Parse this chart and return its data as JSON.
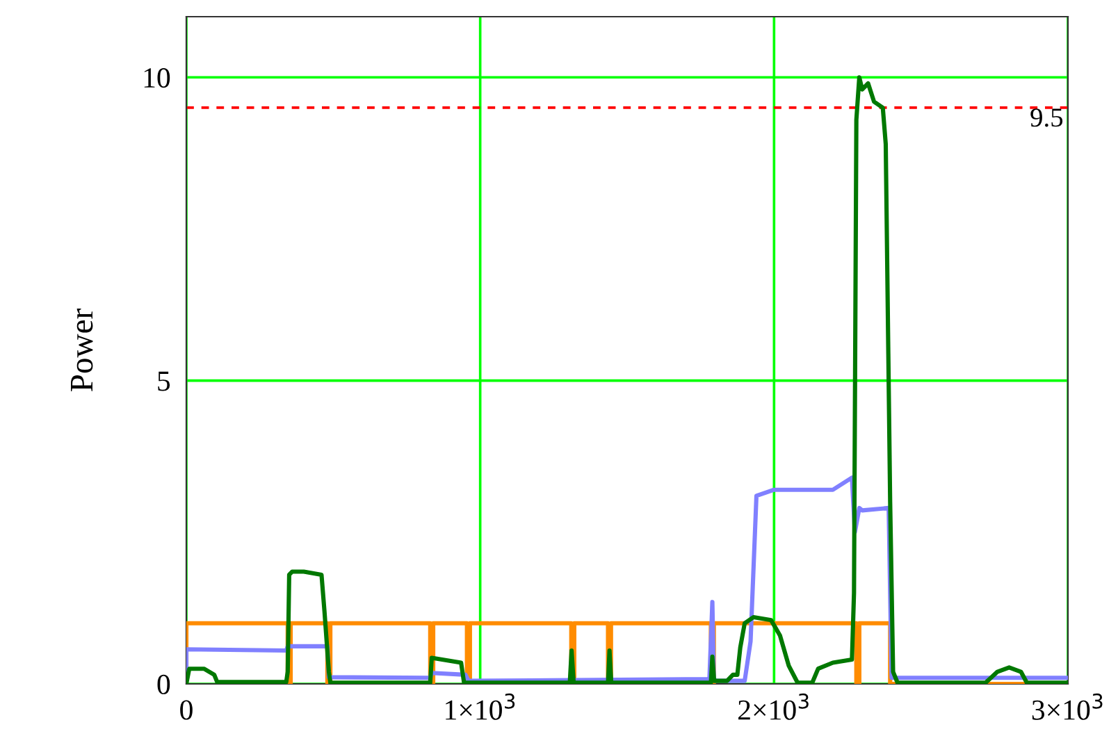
{
  "chart_data": {
    "type": "line",
    "ylabel": "Power",
    "xlim": [
      0,
      3000
    ],
    "ylim": [
      0,
      11
    ],
    "xticks": [
      0,
      {
        "value": 1000,
        "label": "1×10$^{3}$"
      },
      {
        "value": 2000,
        "label": "2×10$^{3}$"
      },
      {
        "value": 3000,
        "label": "3×10$^{3}$"
      }
    ],
    "yticks": [
      0,
      5,
      10
    ],
    "grid": true,
    "legend": false,
    "line_style": "solid",
    "marker": "none",
    "ref_lines": [
      {
        "axis": "y",
        "value": 9.5,
        "label": "9.5",
        "color": "#ff0000",
        "line_style": "dashed"
      }
    ],
    "series": [
      {
        "color": "#ff8c00",
        "x": [
          0,
          0,
          345,
          345,
          355,
          355,
          480,
          480,
          490,
          490,
          830,
          830,
          840,
          840,
          955,
          955,
          965,
          965,
          1310,
          1310,
          1320,
          1320,
          1435,
          1435,
          1445,
          1445,
          1785,
          1785,
          1795,
          1795,
          2280,
          2280,
          2290,
          2290,
          2395,
          2395,
          3000
        ],
        "values": [
          0,
          1,
          1,
          0,
          0,
          1,
          1,
          0,
          0,
          1,
          1,
          0,
          0,
          1,
          1,
          0,
          0,
          1,
          1,
          0,
          0,
          1,
          1,
          0,
          0,
          1,
          1,
          0,
          0,
          1,
          1,
          0,
          0,
          1,
          1,
          0,
          0
        ]
      },
      {
        "color": "#8080ff",
        "x": [
          0,
          0,
          340,
          345,
          480,
          485,
          830,
          835,
          950,
          960,
          1780,
          1790,
          1795,
          1800,
          1900,
          1920,
          1940,
          2000,
          2100,
          2200,
          2265,
          2275,
          2290,
          2300,
          2390,
          2400,
          3000
        ],
        "values": [
          0,
          0.57,
          0.55,
          0.62,
          0.62,
          0.11,
          0.1,
          0.18,
          0.15,
          0.05,
          0.08,
          1.35,
          0.1,
          0.05,
          0.05,
          0.7,
          3.1,
          3.2,
          3.2,
          3.2,
          3.4,
          2.5,
          2.9,
          2.86,
          2.9,
          0.1,
          0.1
        ]
      },
      {
        "color": "#007800",
        "x": [
          0,
          10,
          60,
          95,
          105,
          340,
          345,
          350,
          360,
          400,
          460,
          470,
          485,
          490,
          830,
          835,
          935,
          945,
          1305,
          1311,
          1318,
          1435,
          1440,
          1446,
          1785,
          1790,
          1796,
          1840,
          1860,
          1875,
          1885,
          1900,
          1930,
          1990,
          2020,
          2050,
          2080,
          2130,
          2150,
          2200,
          2265,
          2272,
          2280,
          2290,
          2300,
          2320,
          2340,
          2370,
          2380,
          2395,
          2405,
          2420,
          2720,
          2760,
          2800,
          2840,
          2860,
          3000
        ],
        "values": [
          0,
          0.25,
          0.25,
          0.15,
          0.03,
          0.03,
          0.2,
          1.8,
          1.85,
          1.85,
          1.8,
          1.2,
          0.2,
          0.02,
          0.02,
          0.43,
          0.35,
          0.02,
          0.02,
          0.55,
          0.02,
          0.02,
          0.55,
          0.02,
          0.02,
          0.45,
          0.05,
          0.05,
          0.15,
          0.15,
          0.6,
          1.0,
          1.1,
          1.05,
          0.8,
          0.3,
          0.02,
          0.02,
          0.25,
          0.35,
          0.4,
          1.5,
          9.3,
          10.0,
          9.8,
          9.9,
          9.6,
          9.5,
          8.9,
          3.0,
          0.2,
          0.02,
          0.02,
          0.2,
          0.27,
          0.2,
          0.02,
          0.02
        ]
      }
    ]
  }
}
